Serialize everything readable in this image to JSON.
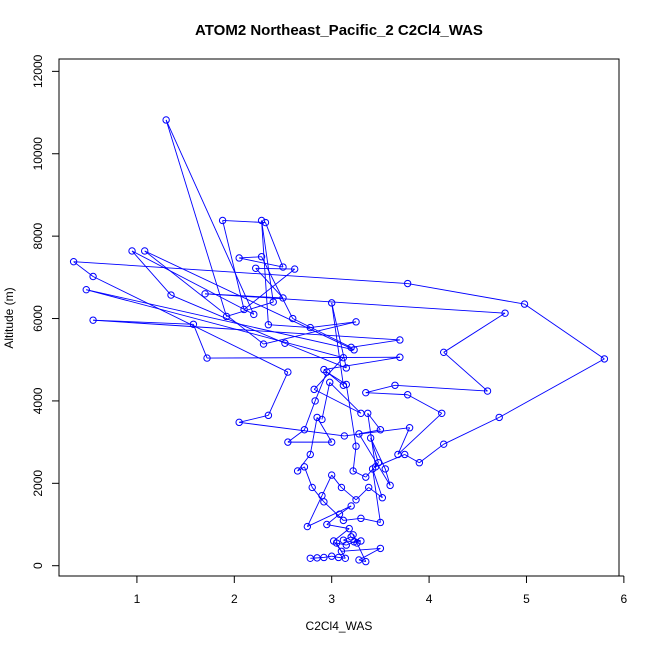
{
  "chart_data": {
    "type": "line",
    "title": "ATOM2 Northeast_Pacific_2 C2Cl4_WAS",
    "xlabel": "C2Cl4_WAS",
    "ylabel": "Altitude (m)",
    "xlim": [
      0.2,
      5.95
    ],
    "ylim": [
      -250,
      12300
    ],
    "x_ticks": [
      1,
      2,
      3,
      4,
      5,
      6
    ],
    "y_ticks": [
      0,
      2000,
      4000,
      6000,
      8000,
      10000,
      12000
    ],
    "series": [
      {
        "color": "#0000ff",
        "marker": "open-circle",
        "points": [
          [
            2.78,
            180
          ],
          [
            2.85,
            190
          ],
          [
            2.92,
            200
          ],
          [
            3.0,
            230
          ],
          [
            3.07,
            200
          ],
          [
            3.14,
            180
          ],
          [
            3.05,
            550
          ],
          [
            3.15,
            500
          ],
          [
            3.23,
            580
          ],
          [
            3.3,
            600
          ],
          [
            3.2,
            700
          ],
          [
            3.12,
            620
          ],
          [
            3.26,
            550
          ],
          [
            3.22,
            750
          ],
          [
            3.35,
            100
          ],
          [
            3.28,
            140
          ],
          [
            3.5,
            420
          ],
          [
            3.1,
            350
          ],
          [
            3.02,
            600
          ],
          [
            3.18,
            900
          ],
          [
            2.95,
            1000
          ],
          [
            3.08,
            1250
          ],
          [
            3.2,
            1450
          ],
          [
            2.75,
            950
          ],
          [
            2.9,
            1700
          ],
          [
            3.0,
            2200
          ],
          [
            3.1,
            1900
          ],
          [
            3.25,
            1600
          ],
          [
            3.38,
            1900
          ],
          [
            3.52,
            1650
          ],
          [
            3.42,
            2350
          ],
          [
            3.5,
            1050
          ],
          [
            3.3,
            1150
          ],
          [
            3.12,
            1100
          ],
          [
            2.92,
            1550
          ],
          [
            2.8,
            1900
          ],
          [
            2.72,
            2400
          ],
          [
            2.65,
            2300
          ],
          [
            2.78,
            2700
          ],
          [
            2.85,
            3600
          ],
          [
            3.0,
            3000
          ],
          [
            2.55,
            3000
          ],
          [
            2.72,
            3300
          ],
          [
            2.83,
            4000
          ],
          [
            2.95,
            4700
          ],
          [
            3.15,
            4400
          ],
          [
            3.25,
            2900
          ],
          [
            3.22,
            2300
          ],
          [
            3.35,
            2150
          ],
          [
            3.48,
            2500
          ],
          [
            3.4,
            3100
          ],
          [
            3.55,
            2350
          ],
          [
            3.6,
            1950
          ],
          [
            3.28,
            3200
          ],
          [
            3.5,
            3300
          ],
          [
            3.37,
            3700
          ],
          [
            3.45,
            2400
          ],
          [
            3.75,
            2700
          ],
          [
            3.9,
            2500
          ],
          [
            4.15,
            2950
          ],
          [
            4.72,
            3600
          ],
          [
            5.8,
            5020
          ],
          [
            4.98,
            6350
          ],
          [
            3.78,
            6850
          ],
          [
            0.35,
            7380
          ],
          [
            0.55,
            7020
          ],
          [
            2.55,
            4700
          ],
          [
            2.35,
            3650
          ],
          [
            2.05,
            3480
          ],
          [
            3.13,
            3150
          ],
          [
            3.8,
            3350
          ],
          [
            3.68,
            2700
          ],
          [
            4.13,
            3700
          ],
          [
            3.78,
            4150
          ],
          [
            3.35,
            4200
          ],
          [
            3.65,
            4380
          ],
          [
            4.6,
            4240
          ],
          [
            4.15,
            5180
          ],
          [
            4.78,
            6130
          ],
          [
            1.7,
            6600
          ],
          [
            2.5,
            6500
          ],
          [
            2.22,
            7220
          ],
          [
            2.62,
            7200
          ],
          [
            2.1,
            6220
          ],
          [
            1.88,
            8380
          ],
          [
            2.32,
            8330
          ],
          [
            2.5,
            7250
          ],
          [
            2.05,
            7470
          ],
          [
            2.28,
            7500
          ],
          [
            2.6,
            6000
          ],
          [
            3.2,
            5300
          ],
          [
            3.7,
            5480
          ],
          [
            0.55,
            5960
          ],
          [
            1.58,
            5860
          ],
          [
            1.72,
            5040
          ],
          [
            3.7,
            5060
          ],
          [
            2.92,
            4760
          ],
          [
            3.12,
            4380
          ],
          [
            3.0,
            6380
          ],
          [
            3.15,
            4800
          ],
          [
            2.52,
            5400
          ],
          [
            1.35,
            6570
          ],
          [
            0.95,
            7640
          ],
          [
            2.2,
            6100
          ],
          [
            1.3,
            10820
          ],
          [
            1.92,
            6050
          ],
          [
            2.4,
            6400
          ],
          [
            2.28,
            8380
          ],
          [
            2.35,
            5850
          ],
          [
            2.78,
            5780
          ],
          [
            3.25,
            5920
          ],
          [
            2.3,
            5380
          ],
          [
            1.08,
            7640
          ],
          [
            3.23,
            5240
          ],
          [
            0.48,
            6700
          ],
          [
            3.12,
            5050
          ],
          [
            2.82,
            4280
          ],
          [
            3.3,
            3700
          ],
          [
            2.98,
            4450
          ],
          [
            2.9,
            3550
          ]
        ]
      }
    ]
  }
}
